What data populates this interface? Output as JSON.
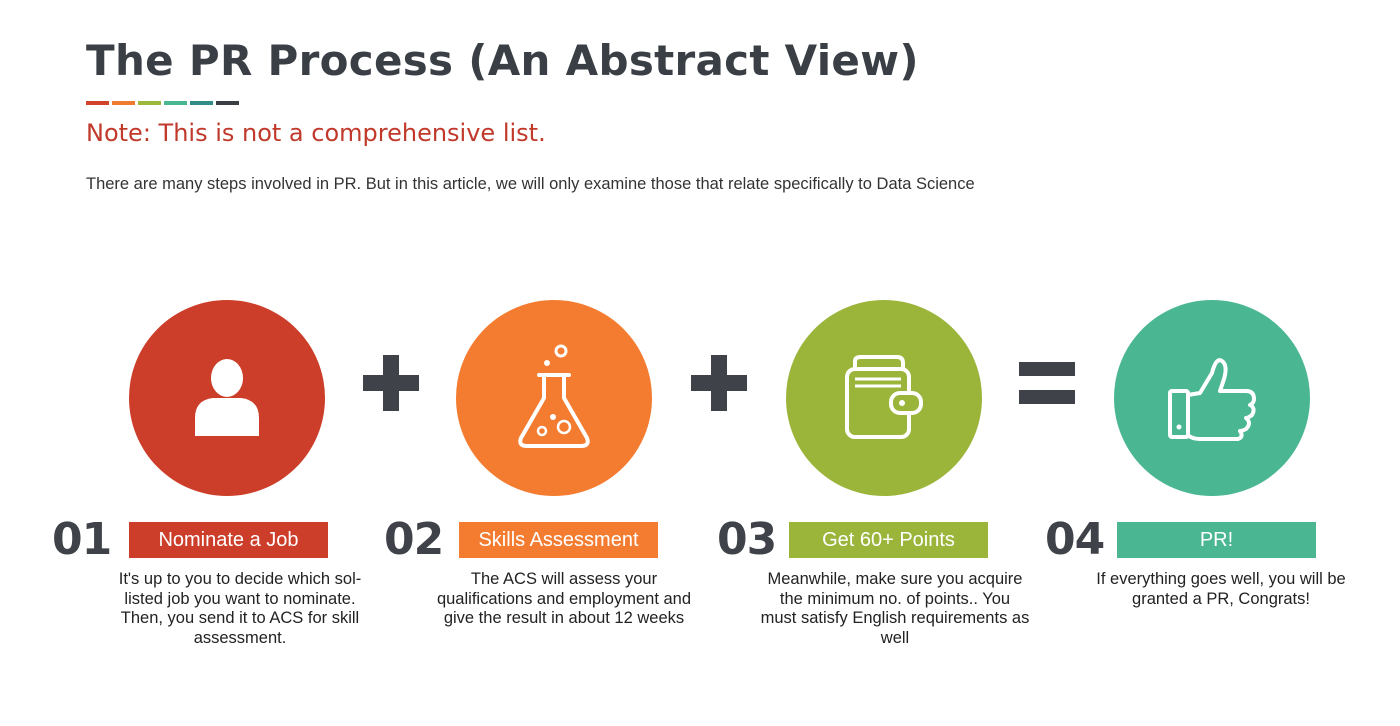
{
  "title": "The PR Process (An Abstract View)",
  "colors": [
    "#d2442a",
    "#f07a30",
    "#9bb83b",
    "#4ab793",
    "#2f8c86",
    "#3a3f45"
  ],
  "note": "Note: This is not a comprehensive list.",
  "intro": "There are many steps involved in PR. But in this article, we will only examine those that relate specifically to Data Science",
  "operators": [
    "+",
    "+",
    "="
  ],
  "steps": [
    {
      "number": "01",
      "label": "Nominate a Job",
      "color": "#cc3e2a",
      "icon": "person-icon",
      "description": "It's up to you to decide which sol-listed job you want to nominate. Then, you send it to ACS for skill assessment."
    },
    {
      "number": "02",
      "label": "Skills Assessment",
      "color": "#f47c30",
      "icon": "flask-icon",
      "description": "The ACS will assess your qualifications and employment and give the result in about 12 weeks"
    },
    {
      "number": "03",
      "label": "Get 60+ Points",
      "color": "#9bb53b",
      "icon": "wallet-icon",
      "description": "Meanwhile, make sure you acquire the minimum no. of points.. You must satisfy English requirements as well"
    },
    {
      "number": "04",
      "label": "PR!",
      "color": "#4ab792",
      "icon": "thumbs-up-icon",
      "description": "If everything goes well, you will be granted a PR, Congrats!"
    }
  ]
}
